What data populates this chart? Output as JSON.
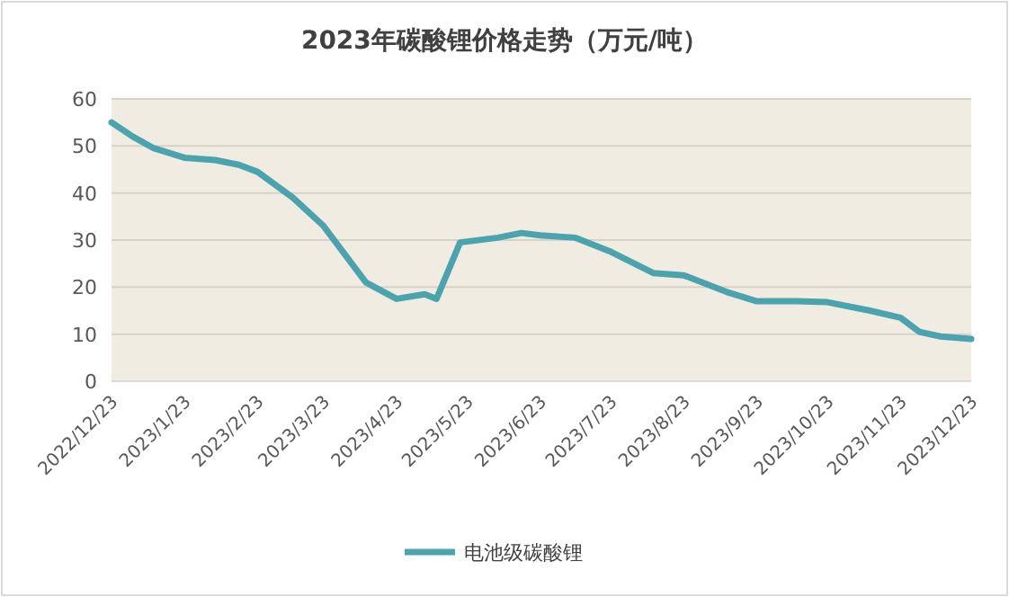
{
  "chart_data": {
    "type": "line",
    "title": "2023年碳酸锂价格走势（万元/吨）",
    "x": [
      "2022-12-23",
      "2023-01-01",
      "2023-01-10",
      "2023-01-23",
      "2023-02-05",
      "2023-02-15",
      "2023-02-23",
      "2023-03-10",
      "2023-03-23",
      "2023-04-10",
      "2023-04-23",
      "2023-05-05",
      "2023-05-10",
      "2023-05-20",
      "2023-06-05",
      "2023-06-15",
      "2023-06-23",
      "2023-07-08",
      "2023-07-23",
      "2023-08-10",
      "2023-08-23",
      "2023-09-10",
      "2023-09-23",
      "2023-10-10",
      "2023-10-23",
      "2023-11-10",
      "2023-11-23",
      "2023-12-01",
      "2023-12-10",
      "2023-12-23"
    ],
    "series": [
      {
        "name": "电池级碳酸锂",
        "color": "#4aa3ad",
        "values": [
          55,
          52,
          49.5,
          47.5,
          47,
          46,
          44.5,
          39,
          33,
          21,
          17.5,
          18.5,
          17.5,
          29.5,
          30.5,
          31.5,
          31,
          30.5,
          27.5,
          23,
          22.5,
          19,
          17,
          17,
          16.8,
          15,
          13.5,
          10.5,
          9.5,
          9
        ]
      }
    ],
    "ylim": [
      0,
      60
    ],
    "yticks": [
      0,
      10,
      20,
      30,
      40,
      50,
      60
    ],
    "xlim": [
      "2022-12-23",
      "2023-12-23"
    ],
    "xticks": [
      {
        "value": "2022-12-23",
        "label": "2022/12/23"
      },
      {
        "value": "2023-01-23",
        "label": "2023/1/23"
      },
      {
        "value": "2023-02-23",
        "label": "2023/2/23"
      },
      {
        "value": "2023-03-23",
        "label": "2023/3/23"
      },
      {
        "value": "2023-04-23",
        "label": "2023/4/23"
      },
      {
        "value": "2023-05-23",
        "label": "2023/5/23"
      },
      {
        "value": "2023-06-23",
        "label": "2023/6/23"
      },
      {
        "value": "2023-07-23",
        "label": "2023/7/23"
      },
      {
        "value": "2023-08-23",
        "label": "2023/8/23"
      },
      {
        "value": "2023-09-23",
        "label": "2023/9/23"
      },
      {
        "value": "2023-10-23",
        "label": "2023/10/23"
      },
      {
        "value": "2023-11-23",
        "label": "2023/11/23"
      },
      {
        "value": "2023-12-23",
        "label": "2023/12/23"
      }
    ],
    "grid": "y",
    "legend": "bottom",
    "marker": "none",
    "line_style": "solid"
  }
}
